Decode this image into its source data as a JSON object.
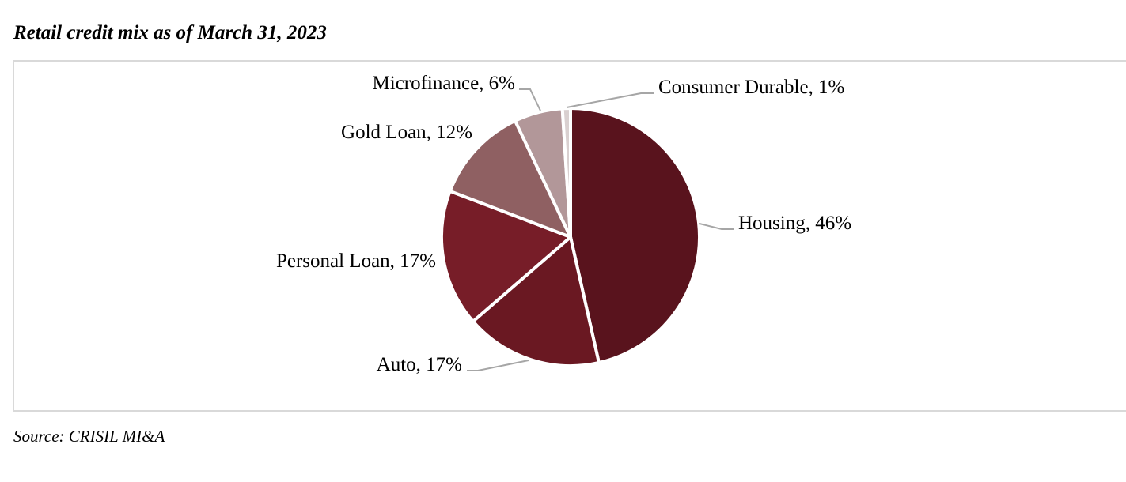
{
  "title": "Retail credit mix as of March 31, 2023",
  "source": "Source: CRISIL MI&A",
  "chart_data": {
    "type": "pie",
    "title": "Retail credit mix as of March 31, 2023",
    "start_angle_deg": 0,
    "direction": "clockwise",
    "legend": "none",
    "slices": [
      {
        "name": "Housing",
        "value": 46,
        "label": "Housing, 46%",
        "color": "#59131d"
      },
      {
        "name": "Auto",
        "value": 17,
        "label": "Auto, 17%",
        "color": "#6a1822"
      },
      {
        "name": "Personal Loan",
        "value": 17,
        "label": "Personal Loan, 17%",
        "color": "#771d28"
      },
      {
        "name": "Gold Loan",
        "value": 12,
        "label": "Gold Loan, 12%",
        "color": "#8f6062"
      },
      {
        "name": "Microfinance",
        "value": 6,
        "label": "Microfinance, 6%",
        "color": "#b29799"
      },
      {
        "name": "Consumer Durable",
        "value": 1,
        "label": "Consumer Durable, 1%",
        "color": "#d9d0d0"
      }
    ]
  }
}
